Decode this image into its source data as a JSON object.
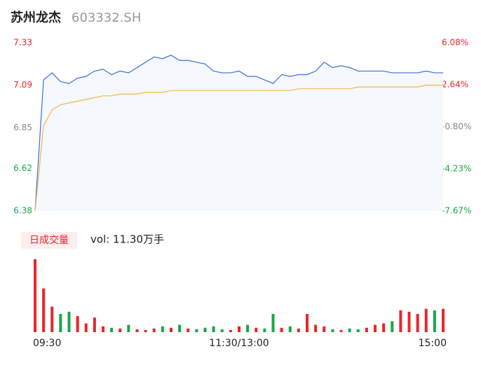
{
  "header": {
    "name": "苏州龙杰",
    "code": "603332.SH"
  },
  "chart_data": {
    "type": "line",
    "x": [
      0,
      5,
      10,
      15,
      20,
      25,
      30,
      35,
      40,
      45,
      50,
      55,
      60,
      65,
      70,
      75,
      80,
      85,
      90,
      95,
      100,
      105,
      110,
      115,
      120,
      125,
      130,
      135,
      140,
      145,
      150,
      155,
      160,
      165,
      170,
      175,
      180,
      185,
      190,
      195,
      200,
      205,
      210,
      215,
      220,
      225,
      230,
      235,
      240
    ],
    "xlim": [
      0,
      240
    ],
    "xticks": [
      {
        "value": 0,
        "label": "09:30"
      },
      {
        "value": 120,
        "label": "11:30/13:00"
      },
      {
        "value": 240,
        "label": "15:00"
      }
    ],
    "ylim": [
      6.38,
      7.33
    ],
    "yticks": [
      7.33,
      7.09,
      6.85,
      6.62,
      6.38
    ],
    "y2lim": [
      -7.67,
      6.08
    ],
    "y2ticks": [
      {
        "value": 6.08,
        "label": "6.08%"
      },
      {
        "value": 2.64,
        "label": "2.64%"
      },
      {
        "value": -0.8,
        "label": "-0.80%"
      },
      {
        "value": -4.23,
        "label": "-4.23%"
      },
      {
        "value": -7.67,
        "label": "-7.67%"
      }
    ],
    "up_color": "#e8262b",
    "down_color": "#1aa64a",
    "series": [
      {
        "color": "#3a6fd8",
        "values": [
          6.38,
          7.12,
          7.16,
          7.11,
          7.1,
          7.13,
          7.14,
          7.17,
          7.18,
          7.15,
          7.17,
          7.16,
          7.19,
          7.22,
          7.25,
          7.24,
          7.26,
          7.23,
          7.23,
          7.22,
          7.21,
          7.17,
          7.16,
          7.16,
          7.17,
          7.14,
          7.14,
          7.12,
          7.1,
          7.15,
          7.14,
          7.15,
          7.15,
          7.17,
          7.22,
          7.19,
          7.2,
          7.19,
          7.17,
          7.17,
          7.17,
          7.17,
          7.16,
          7.16,
          7.16,
          7.16,
          7.17,
          7.16,
          7.16
        ]
      },
      {
        "color": "#f0b84a",
        "values": [
          6.38,
          6.86,
          6.95,
          6.98,
          6.99,
          7.0,
          7.01,
          7.02,
          7.03,
          7.03,
          7.04,
          7.04,
          7.04,
          7.05,
          7.05,
          7.05,
          7.06,
          7.06,
          7.06,
          7.06,
          7.06,
          7.06,
          7.06,
          7.06,
          7.06,
          7.06,
          7.06,
          7.06,
          7.06,
          7.06,
          7.06,
          7.07,
          7.07,
          7.07,
          7.07,
          7.07,
          7.07,
          7.07,
          7.08,
          7.08,
          7.08,
          7.08,
          7.08,
          7.08,
          7.08,
          7.08,
          7.09,
          7.09,
          7.09
        ]
      }
    ],
    "volume": {
      "label": "日成交量",
      "summary": "vol: 11.30万手",
      "values": [
        100,
        60,
        35,
        25,
        28,
        22,
        12,
        20,
        8,
        6,
        5,
        10,
        4,
        3,
        5,
        8,
        6,
        10,
        5,
        4,
        6,
        8,
        4,
        3,
        8,
        10,
        6,
        5,
        25,
        6,
        8,
        5,
        25,
        10,
        8,
        4,
        3,
        5,
        4,
        6,
        10,
        12,
        15,
        30,
        28,
        25,
        32,
        30,
        32
      ]
    }
  }
}
